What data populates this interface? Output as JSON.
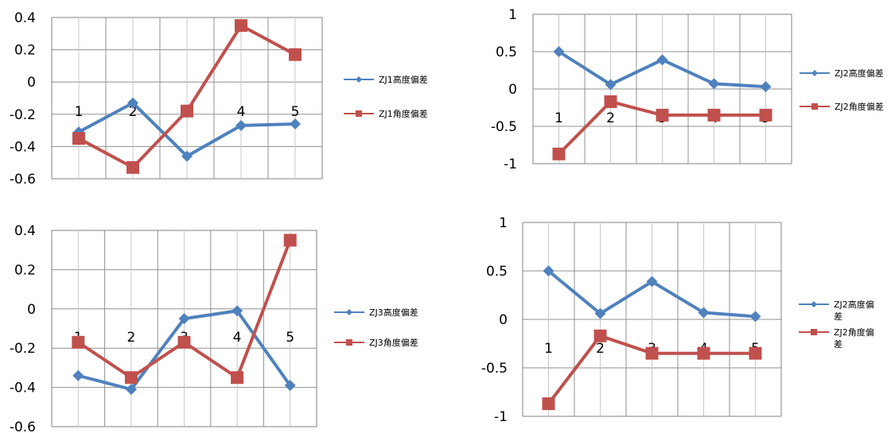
{
  "colors": {
    "series1": "#4f81bd",
    "series2": "#c0504d",
    "grid": "#909090",
    "frame": "#808080"
  },
  "chart_data": [
    {
      "type": "line",
      "categories": [
        "1",
        "2",
        "3",
        "4",
        "5"
      ],
      "ylim": [
        -0.6,
        0.4
      ],
      "yticks": [
        "0.4",
        "0.2",
        "0",
        "-0.2",
        "-0.4",
        "-0.6"
      ],
      "grid": true,
      "legend_position": "right",
      "series": [
        {
          "name": "ZJ1高度偏差",
          "values": [
            -0.31,
            -0.13,
            -0.46,
            -0.27,
            -0.26
          ]
        },
        {
          "name": "ZJ1角度偏差",
          "values": [
            -0.35,
            -0.53,
            -0.18,
            0.35,
            0.17
          ]
        }
      ]
    },
    {
      "type": "line",
      "categories": [
        "1",
        "2",
        "3",
        "4",
        "5"
      ],
      "ylim": [
        -1,
        1
      ],
      "yticks": [
        "1",
        "0.5",
        "0",
        "-0.5",
        "-1"
      ],
      "grid": true,
      "legend_position": "right",
      "series": [
        {
          "name": "ZJ2高度偏差",
          "values": [
            0.5,
            0.06,
            0.39,
            0.07,
            0.03
          ]
        },
        {
          "name": "ZJ2角度偏差",
          "values": [
            -0.87,
            -0.17,
            -0.35,
            -0.35,
            -0.35
          ]
        }
      ]
    },
    {
      "type": "line",
      "categories": [
        "1",
        "2",
        "3",
        "4",
        "5"
      ],
      "ylim": [
        -0.6,
        0.4
      ],
      "yticks": [
        "0.4",
        "0.2",
        "0",
        "-0.2",
        "-0.4",
        "-0.6"
      ],
      "grid": true,
      "legend_position": "right",
      "series": [
        {
          "name": "ZJ3高度偏差",
          "values": [
            -0.34,
            -0.41,
            -0.05,
            -0.01,
            -0.39
          ]
        },
        {
          "name": "ZJ3角度偏差",
          "values": [
            -0.17,
            -0.35,
            -0.17,
            -0.35,
            0.35
          ]
        }
      ]
    },
    {
      "type": "line",
      "categories": [
        "1",
        "2",
        "3",
        "4",
        "5"
      ],
      "ylim": [
        -1,
        1
      ],
      "yticks": [
        "1",
        "0.5",
        "0",
        "-0.5",
        "-1"
      ],
      "grid": true,
      "legend_position": "right",
      "series": [
        {
          "name": "ZJ2高度偏差",
          "values": [
            0.5,
            0.06,
            0.39,
            0.07,
            0.03
          ]
        },
        {
          "name": "ZJ2角度偏差",
          "values": [
            -0.87,
            -0.17,
            -0.35,
            -0.35,
            -0.35
          ]
        }
      ]
    }
  ]
}
